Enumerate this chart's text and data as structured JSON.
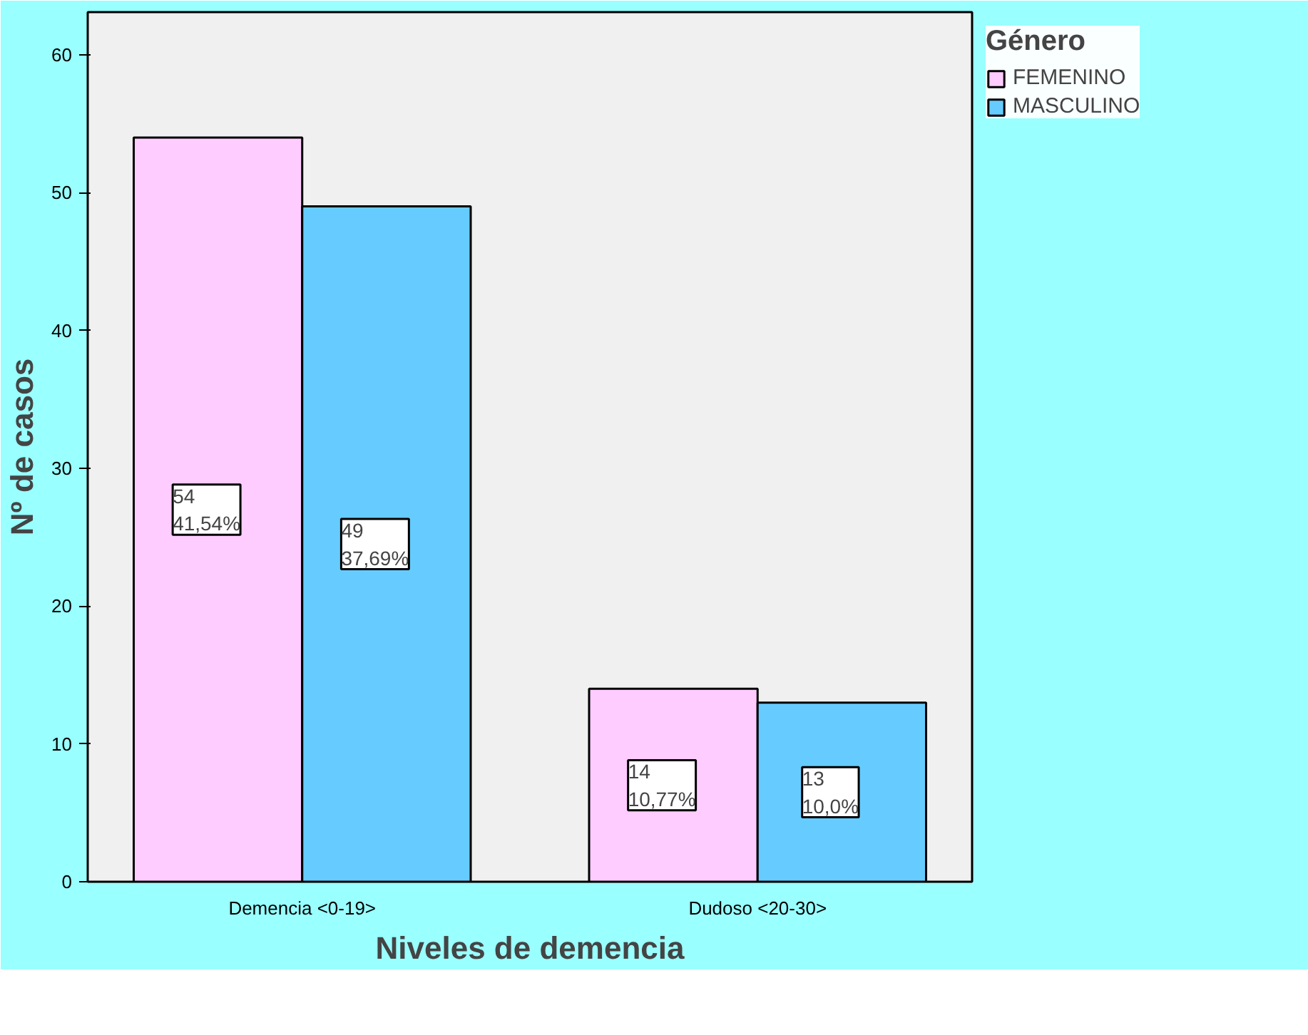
{
  "chart_data": {
    "type": "bar",
    "xlabel": "Niveles de demencia",
    "ylabel": "Nº de casos",
    "legend_title": "Género",
    "categories": [
      "Demencia <0-19>",
      "Dudoso <20-30>"
    ],
    "series": [
      {
        "name": "FEMENINO",
        "color": "#ffccff",
        "values": [
          54,
          14
        ],
        "value_labels": [
          "54\n41,54%",
          "14\n10,77%"
        ]
      },
      {
        "name": "MASCULINO",
        "color": "#66ccff",
        "values": [
          49,
          13
        ],
        "value_labels": [
          "49\n37,69%",
          "13\n10,0%"
        ]
      }
    ],
    "ylim": [
      0,
      63.1
    ],
    "yticks": [
      0,
      10,
      20,
      30,
      40,
      50,
      60
    ],
    "grid": false,
    "legend": "right"
  }
}
